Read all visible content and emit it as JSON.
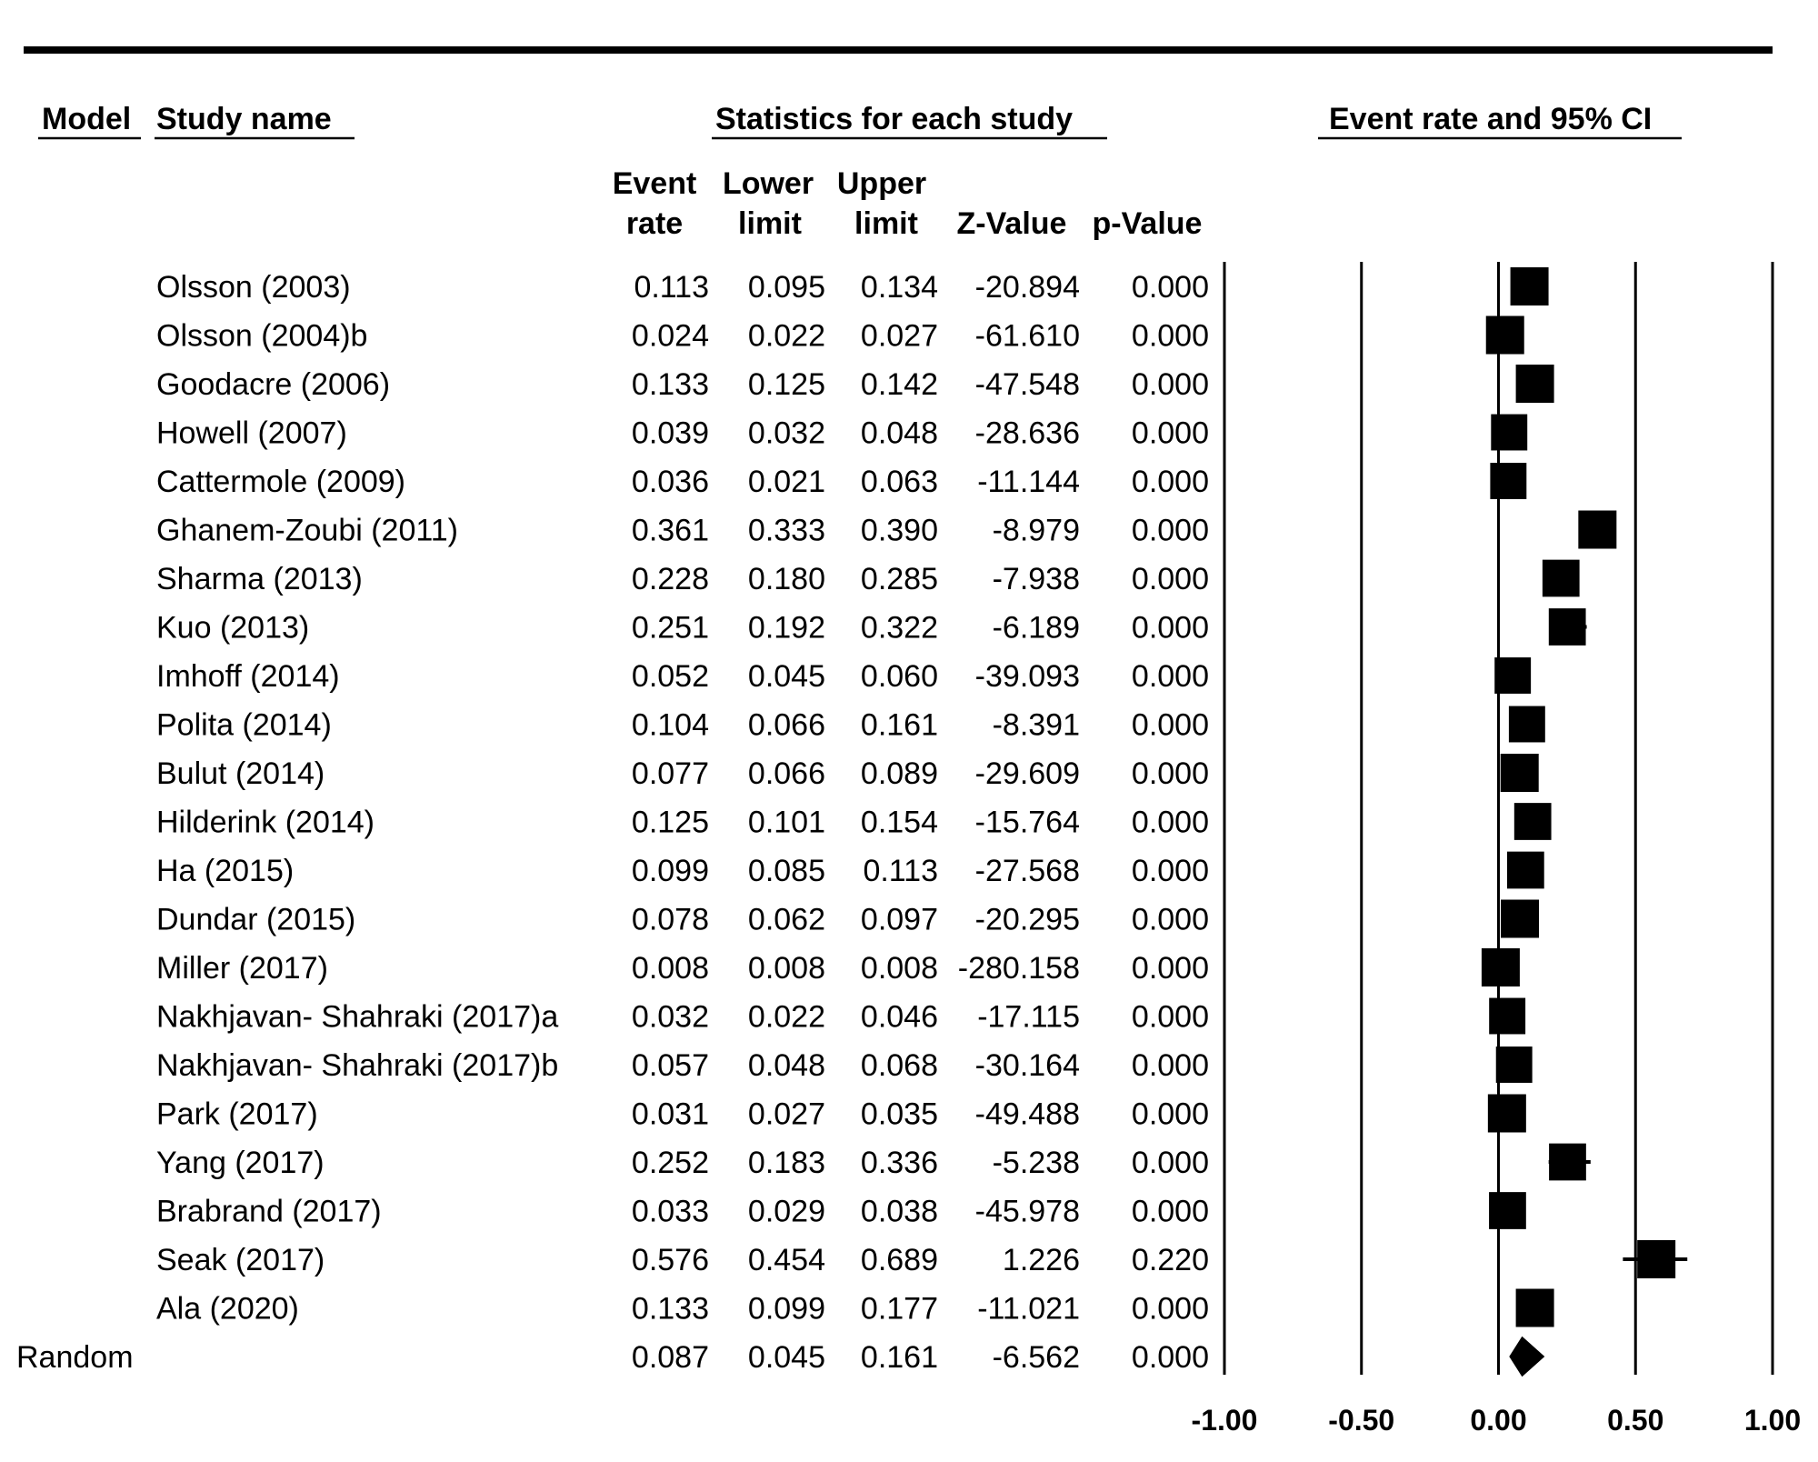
{
  "headers": {
    "model": "Model",
    "study_name": "Study name",
    "statistics": "Statistics for each study",
    "plot_title": "Event rate and 95% CI",
    "col_event_1": "Event",
    "col_event_2": "rate",
    "col_lower_1": "Lower",
    "col_lower_2": "limit",
    "col_upper_1": "Upper",
    "col_upper_2": "limit",
    "col_z": "Z-Value",
    "col_p": "p-Value"
  },
  "chart_data": {
    "type": "forest",
    "title": "Event rate and 95% CI",
    "xlabel": "",
    "ylabel": "",
    "xlim": [
      -1.0,
      1.0
    ],
    "x_ticks": [
      "-1.00",
      "-0.50",
      "0.00",
      "0.50",
      "1.00"
    ],
    "x_tick_values": [
      -1.0,
      -0.5,
      0.0,
      0.5,
      1.0
    ],
    "studies": [
      {
        "name": "Olsson (2003)",
        "event_rate": "0.113",
        "lower": "0.095",
        "upper": "0.134",
        "z": "-20.894",
        "p": "0.000",
        "weight": 1.0
      },
      {
        "name": "Olsson (2004)b",
        "event_rate": "0.024",
        "lower": "0.022",
        "upper": "0.027",
        "z": "-61.610",
        "p": "0.000",
        "weight": 1.0
      },
      {
        "name": "Goodacre (2006)",
        "event_rate": "0.133",
        "lower": "0.125",
        "upper": "0.142",
        "z": "-47.548",
        "p": "0.000",
        "weight": 1.0
      },
      {
        "name": "Howell (2007)",
        "event_rate": "0.039",
        "lower": "0.032",
        "upper": "0.048",
        "z": "-28.636",
        "p": "0.000",
        "weight": 0.95
      },
      {
        "name": "Cattermole (2009)",
        "event_rate": "0.036",
        "lower": "0.021",
        "upper": "0.063",
        "z": "-11.144",
        "p": "0.000",
        "weight": 0.95
      },
      {
        "name": "Ghanem-Zoubi (2011)",
        "event_rate": "0.361",
        "lower": "0.333",
        "upper": "0.390",
        "z": "-8.979",
        "p": "0.000",
        "weight": 1.0
      },
      {
        "name": "Sharma (2013)",
        "event_rate": "0.228",
        "lower": "0.180",
        "upper": "0.285",
        "z": "-7.938",
        "p": "0.000",
        "weight": 0.97
      },
      {
        "name": "Kuo (2013)",
        "event_rate": "0.251",
        "lower": "0.192",
        "upper": "0.322",
        "z": "-6.189",
        "p": "0.000",
        "weight": 0.97
      },
      {
        "name": "Imhoff (2014)",
        "event_rate": "0.052",
        "lower": "0.045",
        "upper": "0.060",
        "z": "-39.093",
        "p": "0.000",
        "weight": 0.95
      },
      {
        "name": "Polita (2014)",
        "event_rate": "0.104",
        "lower": "0.066",
        "upper": "0.161",
        "z": "-8.391",
        "p": "0.000",
        "weight": 0.95
      },
      {
        "name": "Bulut (2014)",
        "event_rate": "0.077",
        "lower": "0.066",
        "upper": "0.089",
        "z": "-29.609",
        "p": "0.000",
        "weight": 1.0
      },
      {
        "name": "Hilderink (2014)",
        "event_rate": "0.125",
        "lower": "0.101",
        "upper": "0.154",
        "z": "-15.764",
        "p": "0.000",
        "weight": 0.97
      },
      {
        "name": "Ha (2015)",
        "event_rate": "0.099",
        "lower": "0.085",
        "upper": "0.113",
        "z": "-27.568",
        "p": "0.000",
        "weight": 0.97
      },
      {
        "name": "Dundar (2015)",
        "event_rate": "0.078",
        "lower": "0.062",
        "upper": "0.097",
        "z": "-20.295",
        "p": "0.000",
        "weight": 1.0
      },
      {
        "name": "Miller (2017)",
        "event_rate": "0.008",
        "lower": "0.008",
        "upper": "0.008",
        "z": "-280.158",
        "p": "0.000",
        "weight": 1.0
      },
      {
        "name": "Nakhjavan- Shahraki (2017)a",
        "event_rate": "0.032",
        "lower": "0.022",
        "upper": "0.046",
        "z": "-17.115",
        "p": "0.000",
        "weight": 0.95
      },
      {
        "name": "Nakhjavan- Shahraki (2017)b",
        "event_rate": "0.057",
        "lower": "0.048",
        "upper": "0.068",
        "z": "-30.164",
        "p": "0.000",
        "weight": 0.95
      },
      {
        "name": "Park (2017)",
        "event_rate": "0.031",
        "lower": "0.027",
        "upper": "0.035",
        "z": "-49.488",
        "p": "0.000",
        "weight": 1.0
      },
      {
        "name": "Yang (2017)",
        "event_rate": "0.252",
        "lower": "0.183",
        "upper": "0.336",
        "z": "-5.238",
        "p": "0.000",
        "weight": 0.97
      },
      {
        "name": "Brabrand (2017)",
        "event_rate": "0.033",
        "lower": "0.029",
        "upper": "0.038",
        "z": "-45.978",
        "p": "0.000",
        "weight": 0.97
      },
      {
        "name": "Seak (2017)",
        "event_rate": "0.576",
        "lower": "0.454",
        "upper": "0.689",
        "z": "1.226",
        "p": "0.220",
        "weight": 1.0
      },
      {
        "name": "Ala (2020)",
        "event_rate": "0.133",
        "lower": "0.099",
        "upper": "0.177",
        "z": "-11.021",
        "p": "0.000",
        "weight": 1.0
      }
    ],
    "summary": {
      "model": "Random",
      "event_rate": "0.087",
      "lower": "0.045",
      "upper": "0.161",
      "z": "-6.562",
      "p": "0.000"
    },
    "marker_color": "#000000"
  }
}
